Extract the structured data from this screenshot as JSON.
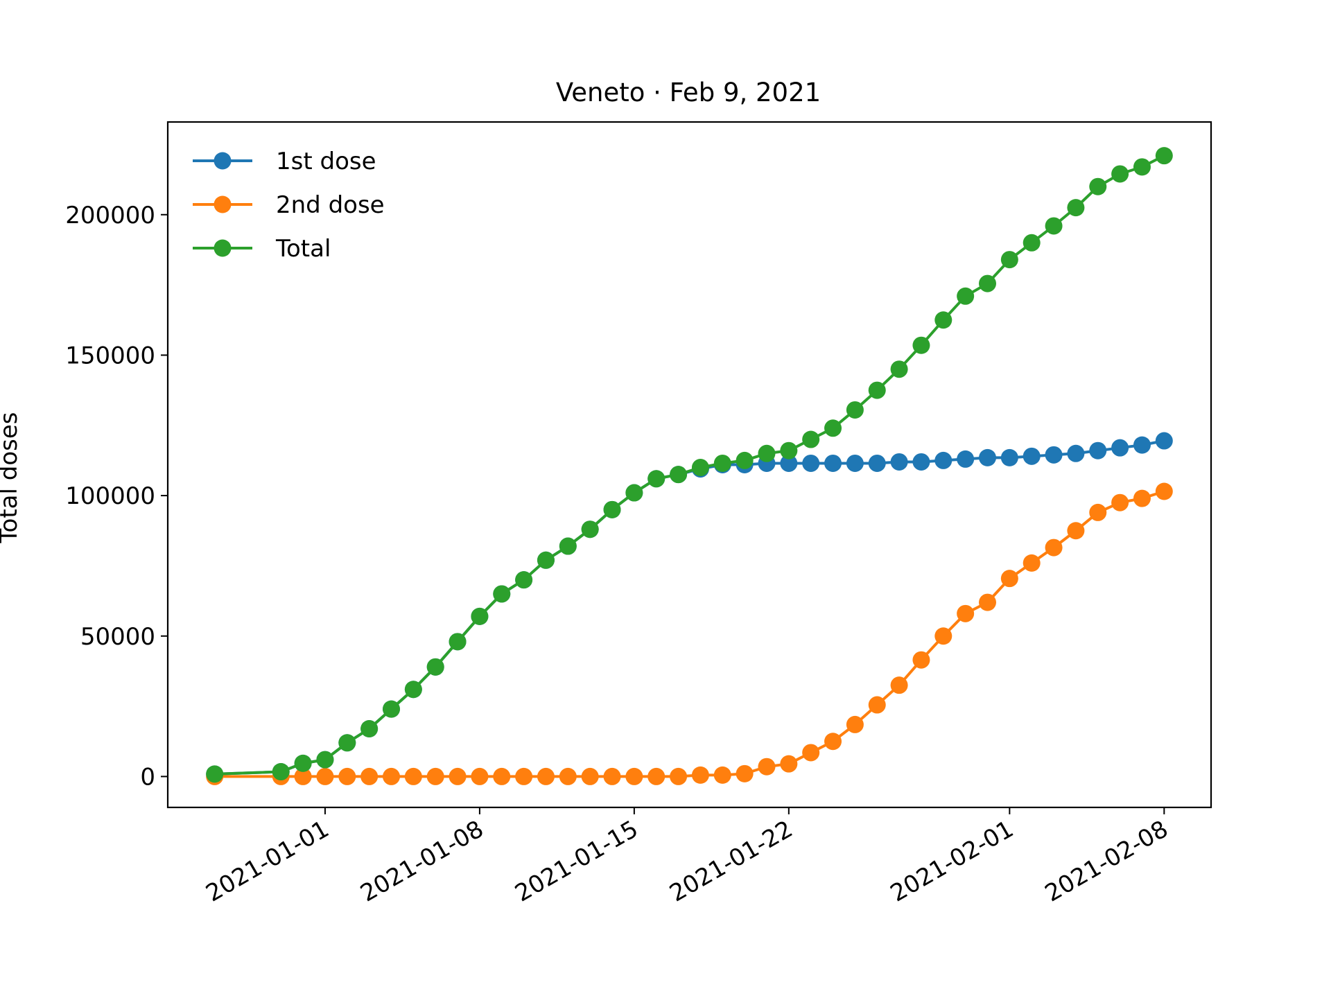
{
  "chart_data": {
    "type": "line",
    "title": "Veneto · Feb 9, 2021",
    "xlabel": "",
    "ylabel": "Total doses",
    "x": [
      "2020-12-27",
      "2020-12-30",
      "2020-12-31",
      "2021-01-01",
      "2021-01-02",
      "2021-01-03",
      "2021-01-04",
      "2021-01-05",
      "2021-01-06",
      "2021-01-07",
      "2021-01-08",
      "2021-01-09",
      "2021-01-10",
      "2021-01-11",
      "2021-01-12",
      "2021-01-13",
      "2021-01-14",
      "2021-01-15",
      "2021-01-16",
      "2021-01-17",
      "2021-01-18",
      "2021-01-19",
      "2021-01-20",
      "2021-01-21",
      "2021-01-22",
      "2021-01-23",
      "2021-01-24",
      "2021-01-25",
      "2021-01-26",
      "2021-01-27",
      "2021-01-28",
      "2021-01-29",
      "2021-01-30",
      "2021-01-31",
      "2021-02-01",
      "2021-02-02",
      "2021-02-03",
      "2021-02-04",
      "2021-02-05",
      "2021-02-06",
      "2021-02-07",
      "2021-02-08"
    ],
    "series": [
      {
        "name": "1st dose",
        "color": "#1f77b4",
        "values": [
          875,
          1700,
          4700,
          6000,
          12000,
          17000,
          24000,
          31000,
          39000,
          48000,
          57000,
          65000,
          70000,
          77000,
          82000,
          88000,
          95000,
          101000,
          106000,
          107500,
          109500,
          111000,
          111000,
          111500,
          111500,
          111500,
          111500,
          111500,
          111500,
          112000,
          112000,
          112500,
          113000,
          113500,
          113500,
          114000,
          114500,
          115000,
          116000,
          117000,
          118000,
          119500
        ]
      },
      {
        "name": "2nd dose",
        "color": "#ff7f0e",
        "values": [
          0,
          0,
          0,
          0,
          0,
          0,
          0,
          0,
          0,
          0,
          0,
          0,
          0,
          0,
          0,
          0,
          0,
          0,
          0,
          0,
          500,
          500,
          1000,
          3500,
          4500,
          8500,
          12500,
          18500,
          25500,
          32500,
          41500,
          50000,
          58000,
          62000,
          70500,
          76000,
          81500,
          87500,
          94000,
          97500,
          99000,
          101500
        ]
      },
      {
        "name": "Total",
        "color": "#2ca02c",
        "values": [
          875,
          1700,
          4700,
          6000,
          12000,
          17000,
          24000,
          31000,
          39000,
          48000,
          57000,
          65000,
          70000,
          77000,
          82000,
          88000,
          95000,
          101000,
          106000,
          107500,
          110000,
          111500,
          112500,
          115000,
          116000,
          120000,
          124000,
          130500,
          137500,
          145000,
          153500,
          162500,
          171000,
          175500,
          184000,
          190000,
          196000,
          202500,
          210000,
          214500,
          217000,
          221000
        ]
      }
    ],
    "yticks": [
      0,
      50000,
      100000,
      150000,
      200000
    ],
    "ytick_labels": [
      "0",
      "50000",
      "100000",
      "150000",
      "200000"
    ],
    "xticks": [
      "2021-01-01",
      "2021-01-08",
      "2021-01-15",
      "2021-01-22",
      "2021-02-01",
      "2021-02-08"
    ],
    "ylim": [
      -11000,
      233000
    ],
    "xlim": [
      "2020-12-24T21:00",
      "2021-02-10T03:00"
    ],
    "grid": false,
    "legend_position": "top-left",
    "marker": "circle"
  }
}
